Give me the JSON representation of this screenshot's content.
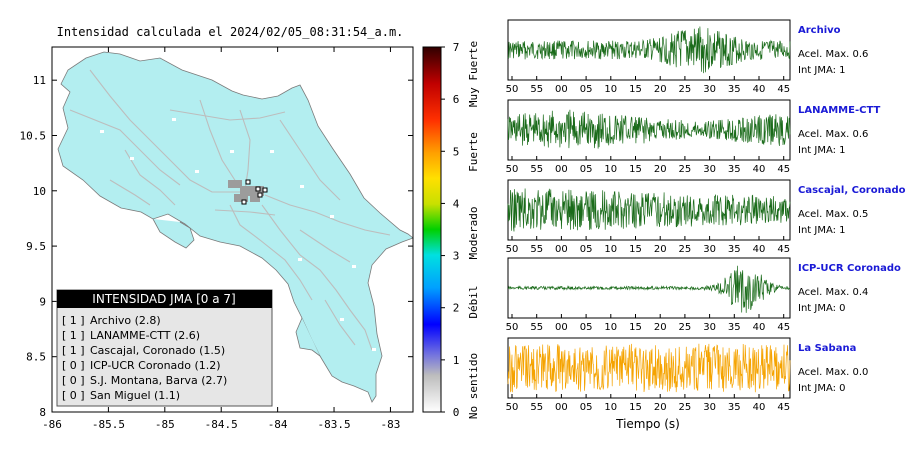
{
  "map": {
    "title": "Intensidad calculada el 2024/02/05_08:31:54_a.m.",
    "lon_ticks": [
      "-86",
      "-85.5",
      "-85",
      "-84.5",
      "-84",
      "-83.5",
      "-83"
    ],
    "lat_ticks": [
      "8",
      "8.5",
      "9",
      "9.5",
      "10",
      "10.5",
      "11"
    ],
    "lon_range": [
      -86,
      -82.8
    ],
    "lat_range": [
      8,
      11.3
    ],
    "land_color": "#b3eef0",
    "road_color": "#bdbdbd"
  },
  "colorbar": {
    "ticks": [
      "0",
      "1",
      "2",
      "3",
      "4",
      "5",
      "6",
      "7"
    ],
    "labels": [
      "No sentido",
      "Débil",
      "Moderado",
      "Fuerte",
      "Muy Fuerte"
    ]
  },
  "legend": {
    "title": "INTENSIDAD JMA [0 a 7]",
    "items": [
      {
        "level": "[ 1 ]",
        "name": "Archivo (2.8)"
      },
      {
        "level": "[ 1 ]",
        "name": "LANAMME-CTT (2.6)"
      },
      {
        "level": "[ 1 ]",
        "name": "Cascajal, Coronado (1.5)"
      },
      {
        "level": "[ 0 ]",
        "name": "ICP-UCR Coronado (1.2)"
      },
      {
        "level": "[ 0 ]",
        "name": "S.J. Montana, Barva (2.7)"
      },
      {
        "level": "[ 0 ]",
        "name": "San Miguel (1.1)"
      }
    ]
  },
  "chart_data": {
    "type": "line",
    "xlabel": "Tiempo (s)",
    "x_ticks": [
      "50",
      "55",
      "00",
      "05",
      "10",
      "15",
      "20",
      "25",
      "30",
      "35",
      "40",
      "45"
    ],
    "series": [
      {
        "name": "Archivo",
        "acel_label": "Acel. Max. 0.6",
        "int_label": "Int JMA: 1",
        "color": "#1a6b1a"
      },
      {
        "name": "LANAMME-CTT",
        "acel_label": "Acel. Max. 0.6",
        "int_label": "Int JMA: 1",
        "color": "#1a6b1a"
      },
      {
        "name": "Cascajal, Coronado",
        "acel_label": "Acel. Max. 0.5",
        "int_label": "Int JMA: 1",
        "color": "#1a6b1a"
      },
      {
        "name": "ICP-UCR Coronado",
        "acel_label": "Acel. Max. 0.4",
        "int_label": "Int JMA: 0",
        "color": "#1a6b1a"
      },
      {
        "name": "La Sabana",
        "acel_label": "Acel. Max. 0.0",
        "int_label": "Int JMA: 0",
        "color": "#f5a300"
      }
    ]
  }
}
